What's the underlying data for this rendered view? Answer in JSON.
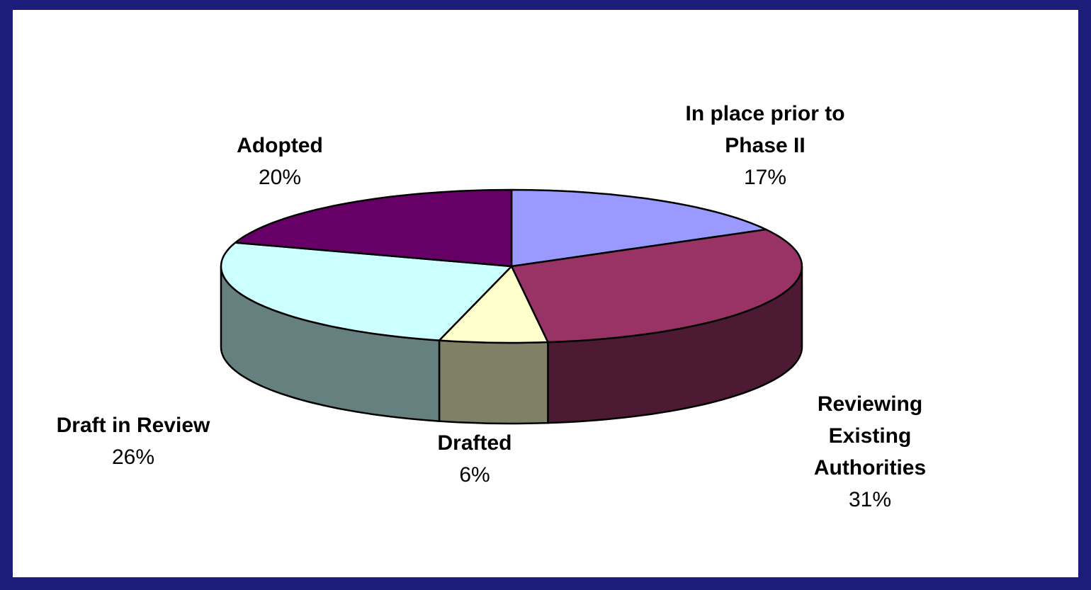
{
  "chart_data": {
    "type": "pie3d",
    "categories": [
      "In place prior to Phase II",
      "Reviewing Existing Authorities",
      "Drafted",
      "Draft in Review",
      "Adopted"
    ],
    "values": [
      17,
      31,
      6,
      26,
      20
    ],
    "value_labels": [
      "17%",
      "31%",
      "6%",
      "26%",
      "20%"
    ],
    "colors": [
      "#9999ff",
      "#993366",
      "#ffffcc",
      "#ccffff",
      "#660066"
    ]
  }
}
